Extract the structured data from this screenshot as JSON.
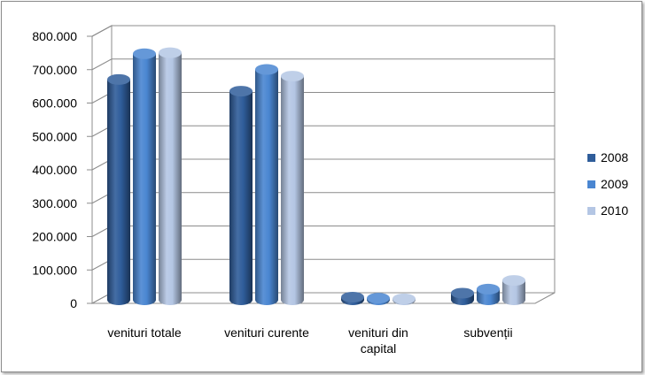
{
  "chart_data": {
    "type": "bar",
    "style": "3d-cylinder",
    "categories": [
      [
        "venituri totale"
      ],
      [
        "venituri curente"
      ],
      [
        "venituri din",
        "capital"
      ],
      [
        "subvenții"
      ]
    ],
    "series": [
      {
        "name": "2008",
        "color": "#2f5d9a",
        "values": [
          660000,
          625000,
          8000,
          20000
        ]
      },
      {
        "name": "2009",
        "color": "#4a86d1",
        "values": [
          737000,
          690000,
          5000,
          32000
        ]
      },
      {
        "name": "2010",
        "color": "#b4c6e4",
        "values": [
          740000,
          670000,
          3000,
          58000
        ]
      }
    ],
    "y_ticks": [
      "0",
      "100.000",
      "200.000",
      "300.000",
      "400.000",
      "500.000",
      "600.000",
      "700.000",
      "800.000"
    ],
    "ylim": [
      0,
      800000
    ],
    "legend_position": "right",
    "grid": true
  }
}
